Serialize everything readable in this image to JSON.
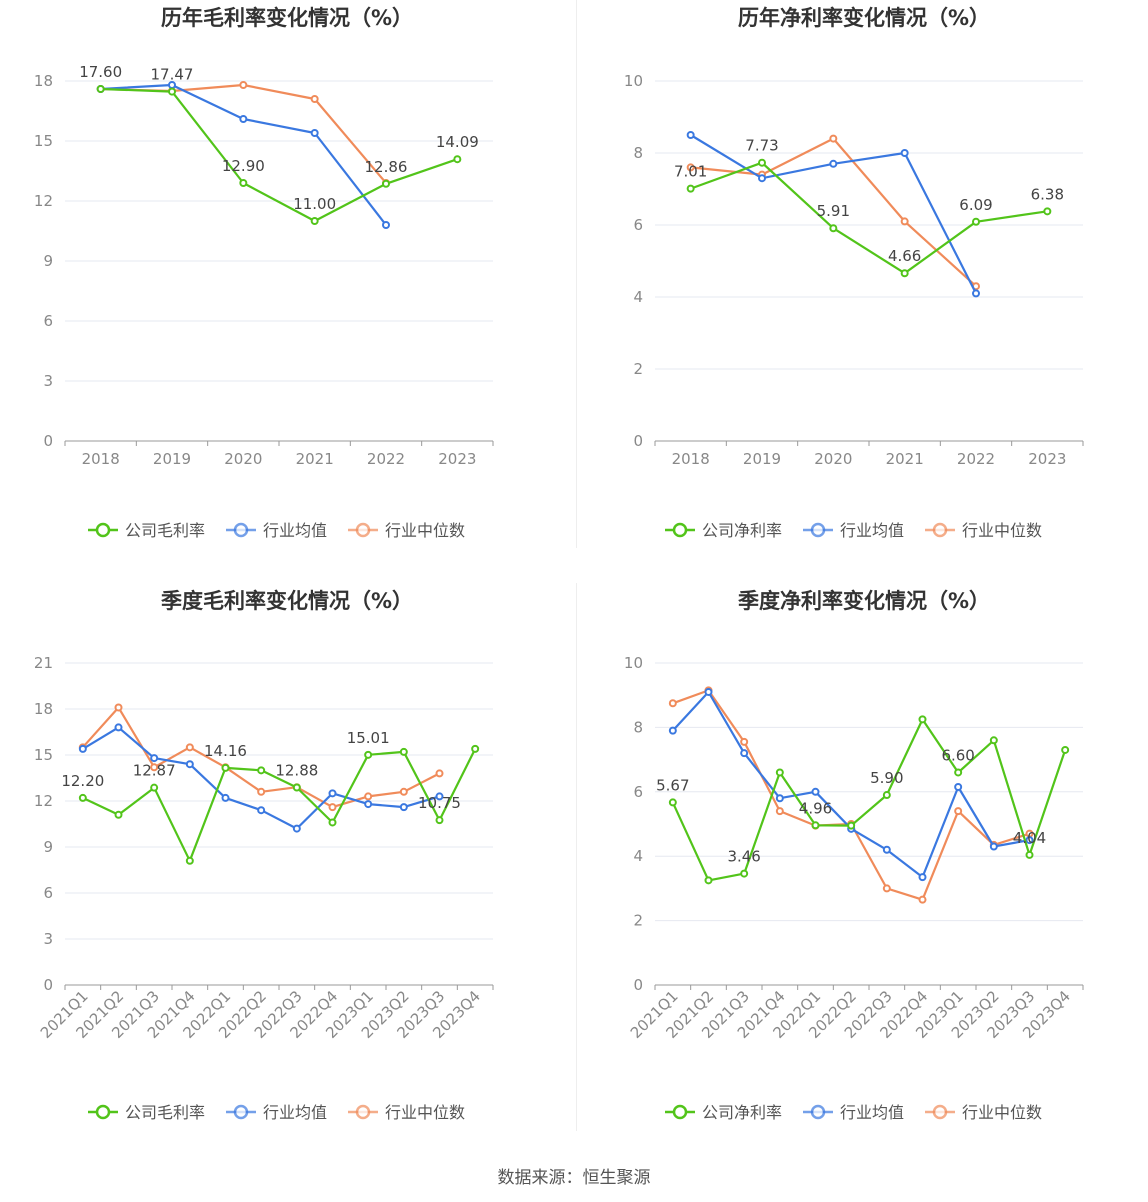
{
  "footer": "数据来源：恒生聚源",
  "chart_data": [
    {
      "type": "line",
      "title": "历年毛利率变化情况（%）",
      "categories": [
        "2018",
        "2019",
        "2020",
        "2021",
        "2022",
        "2023"
      ],
      "ylim": [
        0,
        18
      ],
      "yticks": [
        "0",
        "3",
        "6",
        "9",
        "12",
        "15",
        "18"
      ],
      "grid": true,
      "legend_position": "bottom-center",
      "series": [
        {
          "name": "公司毛利率",
          "color": "#52c41a",
          "values": [
            17.6,
            17.47,
            12.9,
            11.0,
            12.86,
            14.09
          ],
          "labels": [
            "17.60",
            "17.47",
            "12.90",
            "11.00",
            "12.86",
            "14.09"
          ]
        },
        {
          "name": "行业均值",
          "color": "#3a78e0",
          "values": [
            17.6,
            17.8,
            16.1,
            15.4,
            10.8,
            null
          ]
        },
        {
          "name": "行业中位数",
          "color": "#f08b5a",
          "values": [
            17.6,
            17.5,
            17.8,
            17.1,
            12.9,
            null
          ]
        }
      ]
    },
    {
      "type": "line",
      "title": "历年净利率变化情况（%）",
      "categories": [
        "2018",
        "2019",
        "2020",
        "2021",
        "2022",
        "2023"
      ],
      "ylim": [
        0,
        10
      ],
      "yticks": [
        "0",
        "2",
        "4",
        "6",
        "8",
        "10"
      ],
      "grid": true,
      "legend_position": "bottom-center",
      "series": [
        {
          "name": "公司净利率",
          "color": "#52c41a",
          "values": [
            7.01,
            7.73,
            5.91,
            4.66,
            6.09,
            6.38
          ],
          "labels": [
            "7.01",
            "7.73",
            "5.91",
            "4.66",
            "6.09",
            "6.38"
          ]
        },
        {
          "name": "行业均值",
          "color": "#3a78e0",
          "values": [
            8.5,
            7.3,
            7.7,
            8.0,
            4.1,
            null
          ]
        },
        {
          "name": "行业中位数",
          "color": "#f08b5a",
          "values": [
            7.6,
            7.4,
            8.4,
            6.1,
            4.3,
            null
          ]
        }
      ]
    },
    {
      "type": "line",
      "title": "季度毛利率变化情况（%）",
      "categories": [
        "2021Q1",
        "2021Q2",
        "2021Q3",
        "2021Q4",
        "2022Q1",
        "2022Q2",
        "2022Q3",
        "2022Q4",
        "2023Q1",
        "2023Q2",
        "2023Q3",
        "2023Q4"
      ],
      "ylim": [
        0,
        21
      ],
      "yticks": [
        "0",
        "3",
        "6",
        "9",
        "12",
        "15",
        "18",
        "21"
      ],
      "grid": true,
      "legend_position": "bottom-center",
      "series": [
        {
          "name": "公司毛利率",
          "color": "#52c41a",
          "values": [
            12.2,
            11.1,
            12.87,
            8.1,
            14.16,
            14.0,
            12.88,
            10.6,
            15.01,
            15.2,
            10.75,
            15.4
          ],
          "labels": [
            "12.20",
            "",
            "12.87",
            "",
            "14.16",
            "",
            "12.88",
            "",
            "15.01",
            "",
            "10.75",
            ""
          ]
        },
        {
          "name": "行业均值",
          "color": "#3a78e0",
          "values": [
            15.4,
            16.8,
            14.8,
            14.4,
            12.2,
            11.4,
            10.2,
            12.5,
            11.8,
            11.6,
            12.3,
            null
          ]
        },
        {
          "name": "行业中位数",
          "color": "#f08b5a",
          "values": [
            15.5,
            18.1,
            14.2,
            15.5,
            14.2,
            12.6,
            12.9,
            11.6,
            12.3,
            12.6,
            13.8,
            null
          ]
        }
      ]
    },
    {
      "type": "line",
      "title": "季度净利率变化情况（%）",
      "categories": [
        "2021Q1",
        "2021Q2",
        "2021Q3",
        "2021Q4",
        "2022Q1",
        "2022Q2",
        "2022Q3",
        "2022Q4",
        "2023Q1",
        "2023Q2",
        "2023Q3",
        "2023Q4"
      ],
      "ylim": [
        0,
        10
      ],
      "yticks": [
        "0",
        "2",
        "4",
        "6",
        "8",
        "10"
      ],
      "grid": true,
      "legend_position": "bottom-center",
      "series": [
        {
          "name": "公司净利率",
          "color": "#52c41a",
          "values": [
            5.67,
            3.25,
            3.46,
            6.6,
            4.96,
            4.95,
            5.9,
            8.25,
            6.6,
            7.6,
            4.04,
            7.3
          ],
          "labels": [
            "5.67",
            "",
            "3.46",
            "",
            "4.96",
            "",
            "5.90",
            "",
            "6.60",
            "",
            "4.04",
            ""
          ]
        },
        {
          "name": "行业均值",
          "color": "#3a78e0",
          "values": [
            7.9,
            9.1,
            7.2,
            5.8,
            6.0,
            4.85,
            4.2,
            3.35,
            6.15,
            4.3,
            4.5,
            null
          ]
        },
        {
          "name": "行业中位数",
          "color": "#f08b5a",
          "values": [
            8.75,
            9.15,
            7.55,
            5.4,
            4.95,
            5.0,
            3.0,
            2.65,
            5.4,
            4.35,
            4.7,
            null
          ]
        }
      ]
    }
  ]
}
